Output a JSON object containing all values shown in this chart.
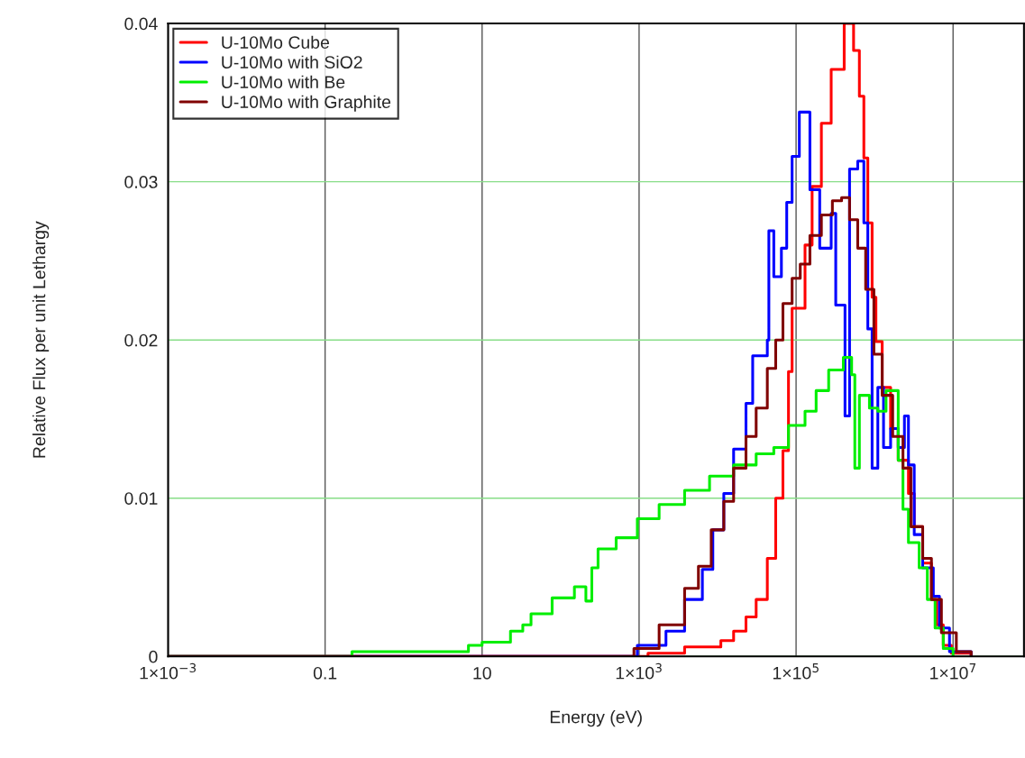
{
  "chart_data": {
    "type": "step",
    "xlabel": "Energy (eV)",
    "ylabel": "Relative Flux per unit Lethargy",
    "log": "x",
    "grid": true,
    "legend": "top left",
    "line_style": "solid",
    "xlim": [
      0.001,
      80000000
    ],
    "xticks": [
      {
        "value": 0.001,
        "label": "1×10$^{−3}$"
      },
      0.1,
      10,
      {
        "value": 1000,
        "label": "1×10$^{3}$"
      },
      {
        "value": 100000,
        "label": "1×10$^{5}$"
      },
      {
        "value": 10000000,
        "label": "1×10$^{7}$"
      }
    ],
    "ylim": [
      0,
      0.04
    ],
    "yticks": [
      0,
      0.01,
      0.02,
      0.03,
      0.04
    ],
    "series": [
      {
        "name": "U-10Mo Cube",
        "color": "#ff0000",
        "x": [
          0.001,
          770,
          1300,
          3800,
          11000,
          16000,
          23000,
          31000,
          43000,
          55000,
          68000,
          80000,
          89000,
          130000,
          160000,
          210000,
          280000,
          410000,
          540000,
          640000,
          730000,
          820000,
          930000,
          1040000,
          1250000,
          1600000,
          2000000,
          2700000,
          3200000,
          4100000,
          5300000,
          6200000,
          7500000,
          9500000,
          17000000
        ],
        "values": [
          0,
          0,
          0.0002,
          0.0006,
          0.001,
          0.0016,
          0.0025,
          0.0036,
          0.0062,
          0.01,
          0.013,
          0.018,
          0.022,
          0.026,
          0.0297,
          0.0337,
          0.0371,
          0.04,
          0.0383,
          0.0354,
          0.0315,
          0.0274,
          0.0227,
          0.0199,
          0.017,
          0.0144,
          0.0124,
          0.0103,
          0.0082,
          0.0059,
          0.0036,
          0.002,
          0.0007,
          0.0002,
          0
        ]
      },
      {
        "name": "U-10Mo with SiO2",
        "color": "#0000ff",
        "x": [
          0.001,
          460,
          950,
          2200,
          3800,
          6400,
          8700,
          12000,
          16000,
          23000,
          28000,
          43000,
          45000,
          52000,
          65000,
          76000,
          89000,
          110000,
          140000,
          150000,
          200000,
          280000,
          320000,
          420000,
          480000,
          610000,
          730000,
          820000,
          930000,
          1100000,
          1300000,
          1600000,
          2000000,
          2400000,
          2700000,
          3200000,
          4100000,
          5600000,
          6700000,
          9000000,
          17000000
        ],
        "values": [
          0,
          0,
          0.0007,
          0.0016,
          0.0036,
          0.0055,
          0.008,
          0.0103,
          0.0131,
          0.016,
          0.019,
          0.02,
          0.0269,
          0.024,
          0.0258,
          0.0287,
          0.0316,
          0.0344,
          0.0344,
          0.0295,
          0.0258,
          0.028,
          0.0222,
          0.0152,
          0.0308,
          0.0313,
          0.0274,
          0.0207,
          0.0119,
          0.017,
          0.0132,
          0.0144,
          0.0132,
          0.0152,
          0.0121,
          0.0077,
          0.0056,
          0.0038,
          0.0018,
          0.0003,
          0
        ]
      },
      {
        "name": "U-10Mo with Be",
        "color": "#00ee00",
        "x": [
          0.001,
          0.22,
          1.1,
          6.7,
          10,
          23,
          33,
          42,
          78,
          150,
          210,
          250,
          300,
          510,
          950,
          1800,
          3800,
          7900,
          16000,
          31000,
          52000,
          80000,
          130000,
          180000,
          260000,
          400000,
          510000,
          560000,
          640000,
          860000,
          1100000,
          1400000,
          1800000,
          2000000,
          2300000,
          2700000,
          3700000,
          4700000,
          5900000,
          7500000,
          10000000
        ],
        "values": [
          0,
          0.0003,
          0.0003,
          0.0007,
          0.0009,
          0.0016,
          0.002,
          0.0027,
          0.0037,
          0.0044,
          0.0035,
          0.0056,
          0.0068,
          0.0075,
          0.0087,
          0.0096,
          0.0105,
          0.0114,
          0.0121,
          0.0128,
          0.0132,
          0.0146,
          0.0155,
          0.0168,
          0.0181,
          0.0189,
          0.0178,
          0.0119,
          0.0165,
          0.0157,
          0.0155,
          0.0168,
          0.0168,
          0.0124,
          0.0093,
          0.0072,
          0.0056,
          0.0036,
          0.0018,
          0.0005,
          0
        ]
      },
      {
        "name": "U-10Mo with Graphite",
        "color": "#800000",
        "x": [
          0.001,
          460,
          860,
          1800,
          3800,
          5700,
          8300,
          12000,
          16000,
          23000,
          31000,
          43000,
          55000,
          68000,
          89000,
          113000,
          150000,
          210000,
          290000,
          380000,
          480000,
          610000,
          770000,
          980000,
          1250000,
          1700000,
          2300000,
          2900000,
          4100000,
          5300000,
          7100000,
          11000000,
          17000000
        ],
        "values": [
          0,
          0,
          0.0005,
          0.002,
          0.0043,
          0.0057,
          0.008,
          0.0098,
          0.0119,
          0.0139,
          0.0157,
          0.0182,
          0.02,
          0.0223,
          0.0239,
          0.0248,
          0.0266,
          0.0279,
          0.0288,
          0.029,
          0.0276,
          0.0258,
          0.0232,
          0.0191,
          0.0165,
          0.0139,
          0.0119,
          0.0082,
          0.0062,
          0.0036,
          0.0015,
          0.0003,
          0
        ]
      }
    ]
  }
}
